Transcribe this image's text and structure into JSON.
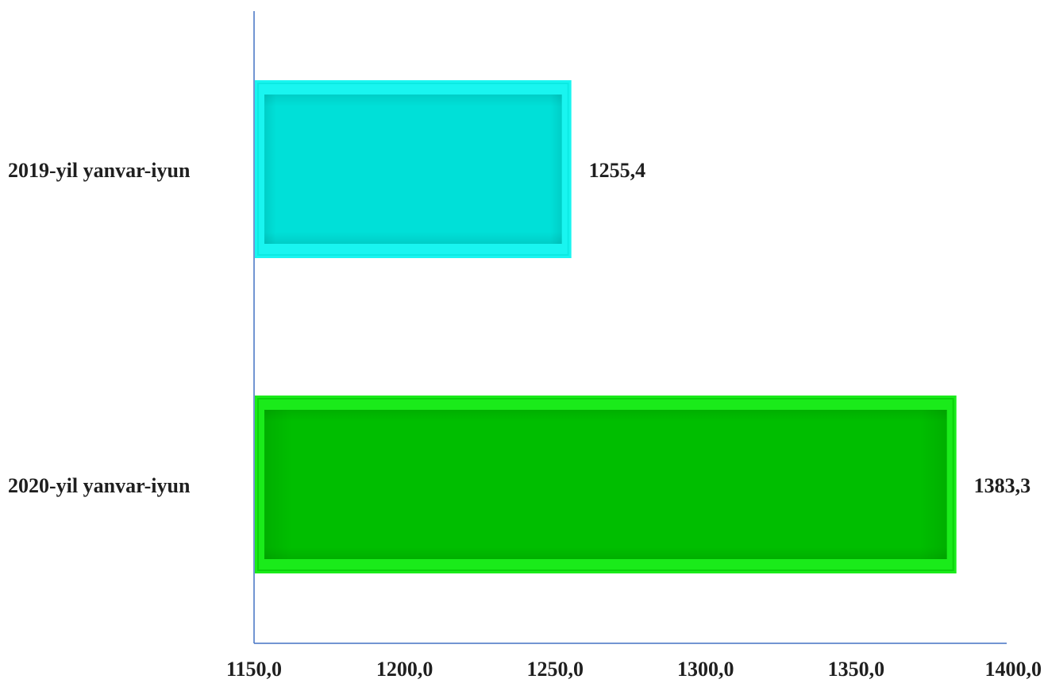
{
  "chart_data": {
    "type": "bar",
    "orientation": "horizontal",
    "categories": [
      "2019-yil yanvar-iyun",
      "2020-yil yanvar-iyun"
    ],
    "values": [
      1255.4,
      1383.3
    ],
    "value_labels": [
      "1255,4",
      "1383,3"
    ],
    "bar_colors": [
      "#00E0D8",
      "#00BE00"
    ],
    "bar_border_colors": [
      "#19F5F0",
      "#1AEB1A"
    ],
    "x_ticks": [
      1150,
      1200,
      1250,
      1300,
      1350,
      1400
    ],
    "x_tick_labels": [
      "1150,0",
      "1200,0",
      "1250,0",
      "1300,0",
      "1350,0",
      "1400,0"
    ],
    "xlim": [
      1150,
      1400
    ],
    "axis_color": "#4472C4",
    "grid": false,
    "legend": "none",
    "title": "",
    "xlabel": "",
    "ylabel": ""
  }
}
